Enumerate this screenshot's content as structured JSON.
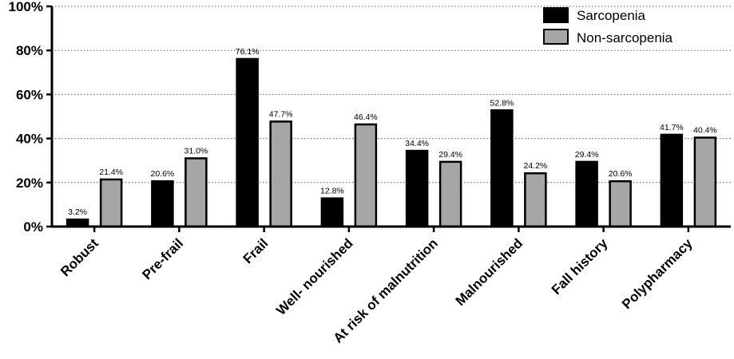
{
  "colors": {
    "sarcopenia": "#000000",
    "non_sarcopenia": "#a6a6a6",
    "bar_stroke": "#000000",
    "grid": "#555555"
  },
  "chart_data": {
    "type": "bar",
    "title": "",
    "xlabel": "",
    "ylabel": "",
    "ylim": [
      0,
      100
    ],
    "y_ticks": [
      0,
      20,
      40,
      60,
      80,
      100
    ],
    "y_tick_labels": [
      "0%",
      "20%",
      "40%",
      "60%",
      "80%",
      "100%"
    ],
    "grid": "horizontal dotted",
    "legend_position": "top-right",
    "categories": [
      "Robust",
      "Pre-frail",
      "Frail",
      "Well- nourished",
      "At risk of malnutrition",
      "Malnourished",
      "Fall history",
      "Polypharmacy"
    ],
    "series": [
      {
        "name": "Sarcopenia",
        "values": [
          3.2,
          20.6,
          76.1,
          12.8,
          34.4,
          52.8,
          29.4,
          41.7
        ],
        "labels": [
          "3.2%",
          "20.6%",
          "76.1%",
          "12.8%",
          "34.4%",
          "52.8%",
          "29.4%",
          "41.7%"
        ]
      },
      {
        "name": "Non-sarcopenia",
        "values": [
          21.4,
          31.0,
          47.7,
          46.4,
          29.4,
          24.2,
          20.6,
          40.4
        ],
        "labels": [
          "21.4%",
          "31.0%",
          "47.7%",
          "46.4%",
          "29.4%",
          "24.2%",
          "20.6%",
          "40.4%"
        ]
      }
    ]
  }
}
